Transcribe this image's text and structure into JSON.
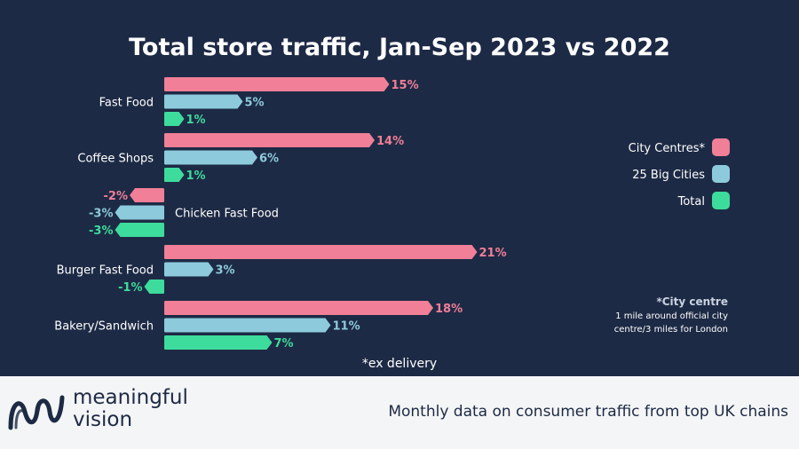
{
  "chart_data": {
    "type": "bar",
    "orientation": "horizontal",
    "title": "Total store traffic, Jan-Sep 2023 vs 2022",
    "categories": [
      "Fast Food",
      "Coffee Shops",
      "Chicken Fast Food",
      "Burger Fast Food",
      "Bakery/Sandwich"
    ],
    "series": [
      {
        "name": "City Centres*",
        "color": "#f07f97",
        "values": [
          15,
          14,
          -2,
          21,
          18
        ],
        "labels": [
          "15%",
          "14%",
          "-2%",
          "21%",
          "18%"
        ]
      },
      {
        "name": "25 Big Cities",
        "color": "#8dcbdc",
        "values": [
          5,
          6,
          -3,
          3,
          11
        ],
        "labels": [
          "5%",
          "6%",
          "-3%",
          "3%",
          "11%"
        ]
      },
      {
        "name": "Total",
        "color": "#3ddc9c",
        "values": [
          1,
          1,
          -3,
          -1,
          7
        ],
        "labels": [
          "1%",
          "1%",
          "-3%",
          "-1%",
          "7%"
        ]
      }
    ],
    "unit": "%",
    "legend_position": "right",
    "footnote_title": "*City centre",
    "footnote_lines": [
      "1 mile around official city",
      "centre/3 miles for London"
    ],
    "note": "*ex delivery"
  },
  "footer": {
    "brand_line1": "meaningful",
    "brand_line2": "vision",
    "tagline": "Monthly data on consumer traffic from top UK chains"
  }
}
